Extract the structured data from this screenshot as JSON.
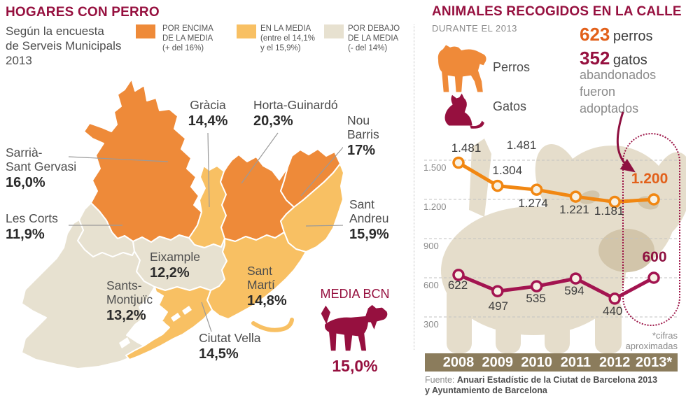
{
  "colors": {
    "maroon": "#96103f",
    "encima": "#ee8a39",
    "media": "#f8c063",
    "debajo": "#e7e1d0",
    "perros_line": "#f18712",
    "gatos_line": "#a31450",
    "highlight_orange": "#e2601a",
    "axis_band": "#8b7c5c"
  },
  "left_panel": {
    "title": "HOGARES CON PERRO",
    "subtitle": "Según la encuesta\nde Serveis Municipals\n2013",
    "legend": [
      {
        "label": "POR ENCIMA\nDE LA MEDIA\n(+ del 16%)",
        "band": "encima"
      },
      {
        "label": "EN LA MEDIA\n(entre el 14,1%\ny  el 15,9%)",
        "band": "media"
      },
      {
        "label": "POR DEBAJO\nDE LA MEDIA\n(- del 14%)",
        "band": "debajo"
      }
    ],
    "districts": [
      {
        "name": "Gràcia",
        "value": "14,4%"
      },
      {
        "name": "Horta-Guinardó",
        "value": "20,3%"
      },
      {
        "name": "Nou\nBarris",
        "value": "17%"
      },
      {
        "name": "Sarrià-\nSant Gervasi",
        "value": "16,0%"
      },
      {
        "name": "Les Corts",
        "value": "11,9%"
      },
      {
        "name": "Sant\nAndreu",
        "value": "15,9%"
      },
      {
        "name": "Eixample",
        "value": "12,2%"
      },
      {
        "name": "Sant\nMartí",
        "value": "14,8%"
      },
      {
        "name": "Sants-\nMontjuïc",
        "value": "13,2%"
      },
      {
        "name": "Ciutat Vella",
        "value": "14,5%"
      }
    ],
    "media_bcn": {
      "label": "MEDIA BCN",
      "value": "15,0%"
    }
  },
  "right_panel": {
    "title": "ANIMALES RECOGIDOS EN LA CALLE",
    "subtitle": "DURANTE EL 2013",
    "legend_dogs": "Perros",
    "legend_cats": "Gatos",
    "adopted_dogs_value": "623",
    "adopted_dogs_label": "perros",
    "adopted_cats_value": "352",
    "adopted_cats_label": "gatos",
    "adopted_note": "abandonados\nfueron\nadoptados",
    "footnote": "*cifras\naproximadas",
    "source_prefix": "Fuente:",
    "source_bold": "Anuari Estadístic de la Ciutat de Barcelona 2013\ny Ayuntamiento de Barcelona"
  },
  "chart_data": {
    "type": "line",
    "x": [
      "2008",
      "2009",
      "2010",
      "2011",
      "2012",
      "2013*"
    ],
    "series": [
      {
        "name": "Perros",
        "color": "#f18712",
        "values": [
          1481,
          1304,
          1274,
          1221,
          1181,
          1200
        ],
        "labels": [
          "1.481",
          "1.304",
          "1.274",
          "1.221",
          "1.181",
          "1.200"
        ]
      },
      {
        "name": "Gatos",
        "color": "#a31450",
        "values": [
          622,
          497,
          535,
          594,
          440,
          600
        ],
        "labels": [
          "622",
          "497",
          "535",
          "594",
          "440",
          "600"
        ]
      }
    ],
    "duplicate_label": "1.481",
    "y_ticks": [
      1500,
      1200,
      900,
      600,
      300
    ],
    "y_tick_labels": [
      "1.500",
      "1.200",
      "900",
      "600",
      "300"
    ],
    "ylim": [
      300,
      1500
    ],
    "grid": "dashed-horizontal",
    "highlight_x": "2013*",
    "legend_position": "top-left"
  }
}
